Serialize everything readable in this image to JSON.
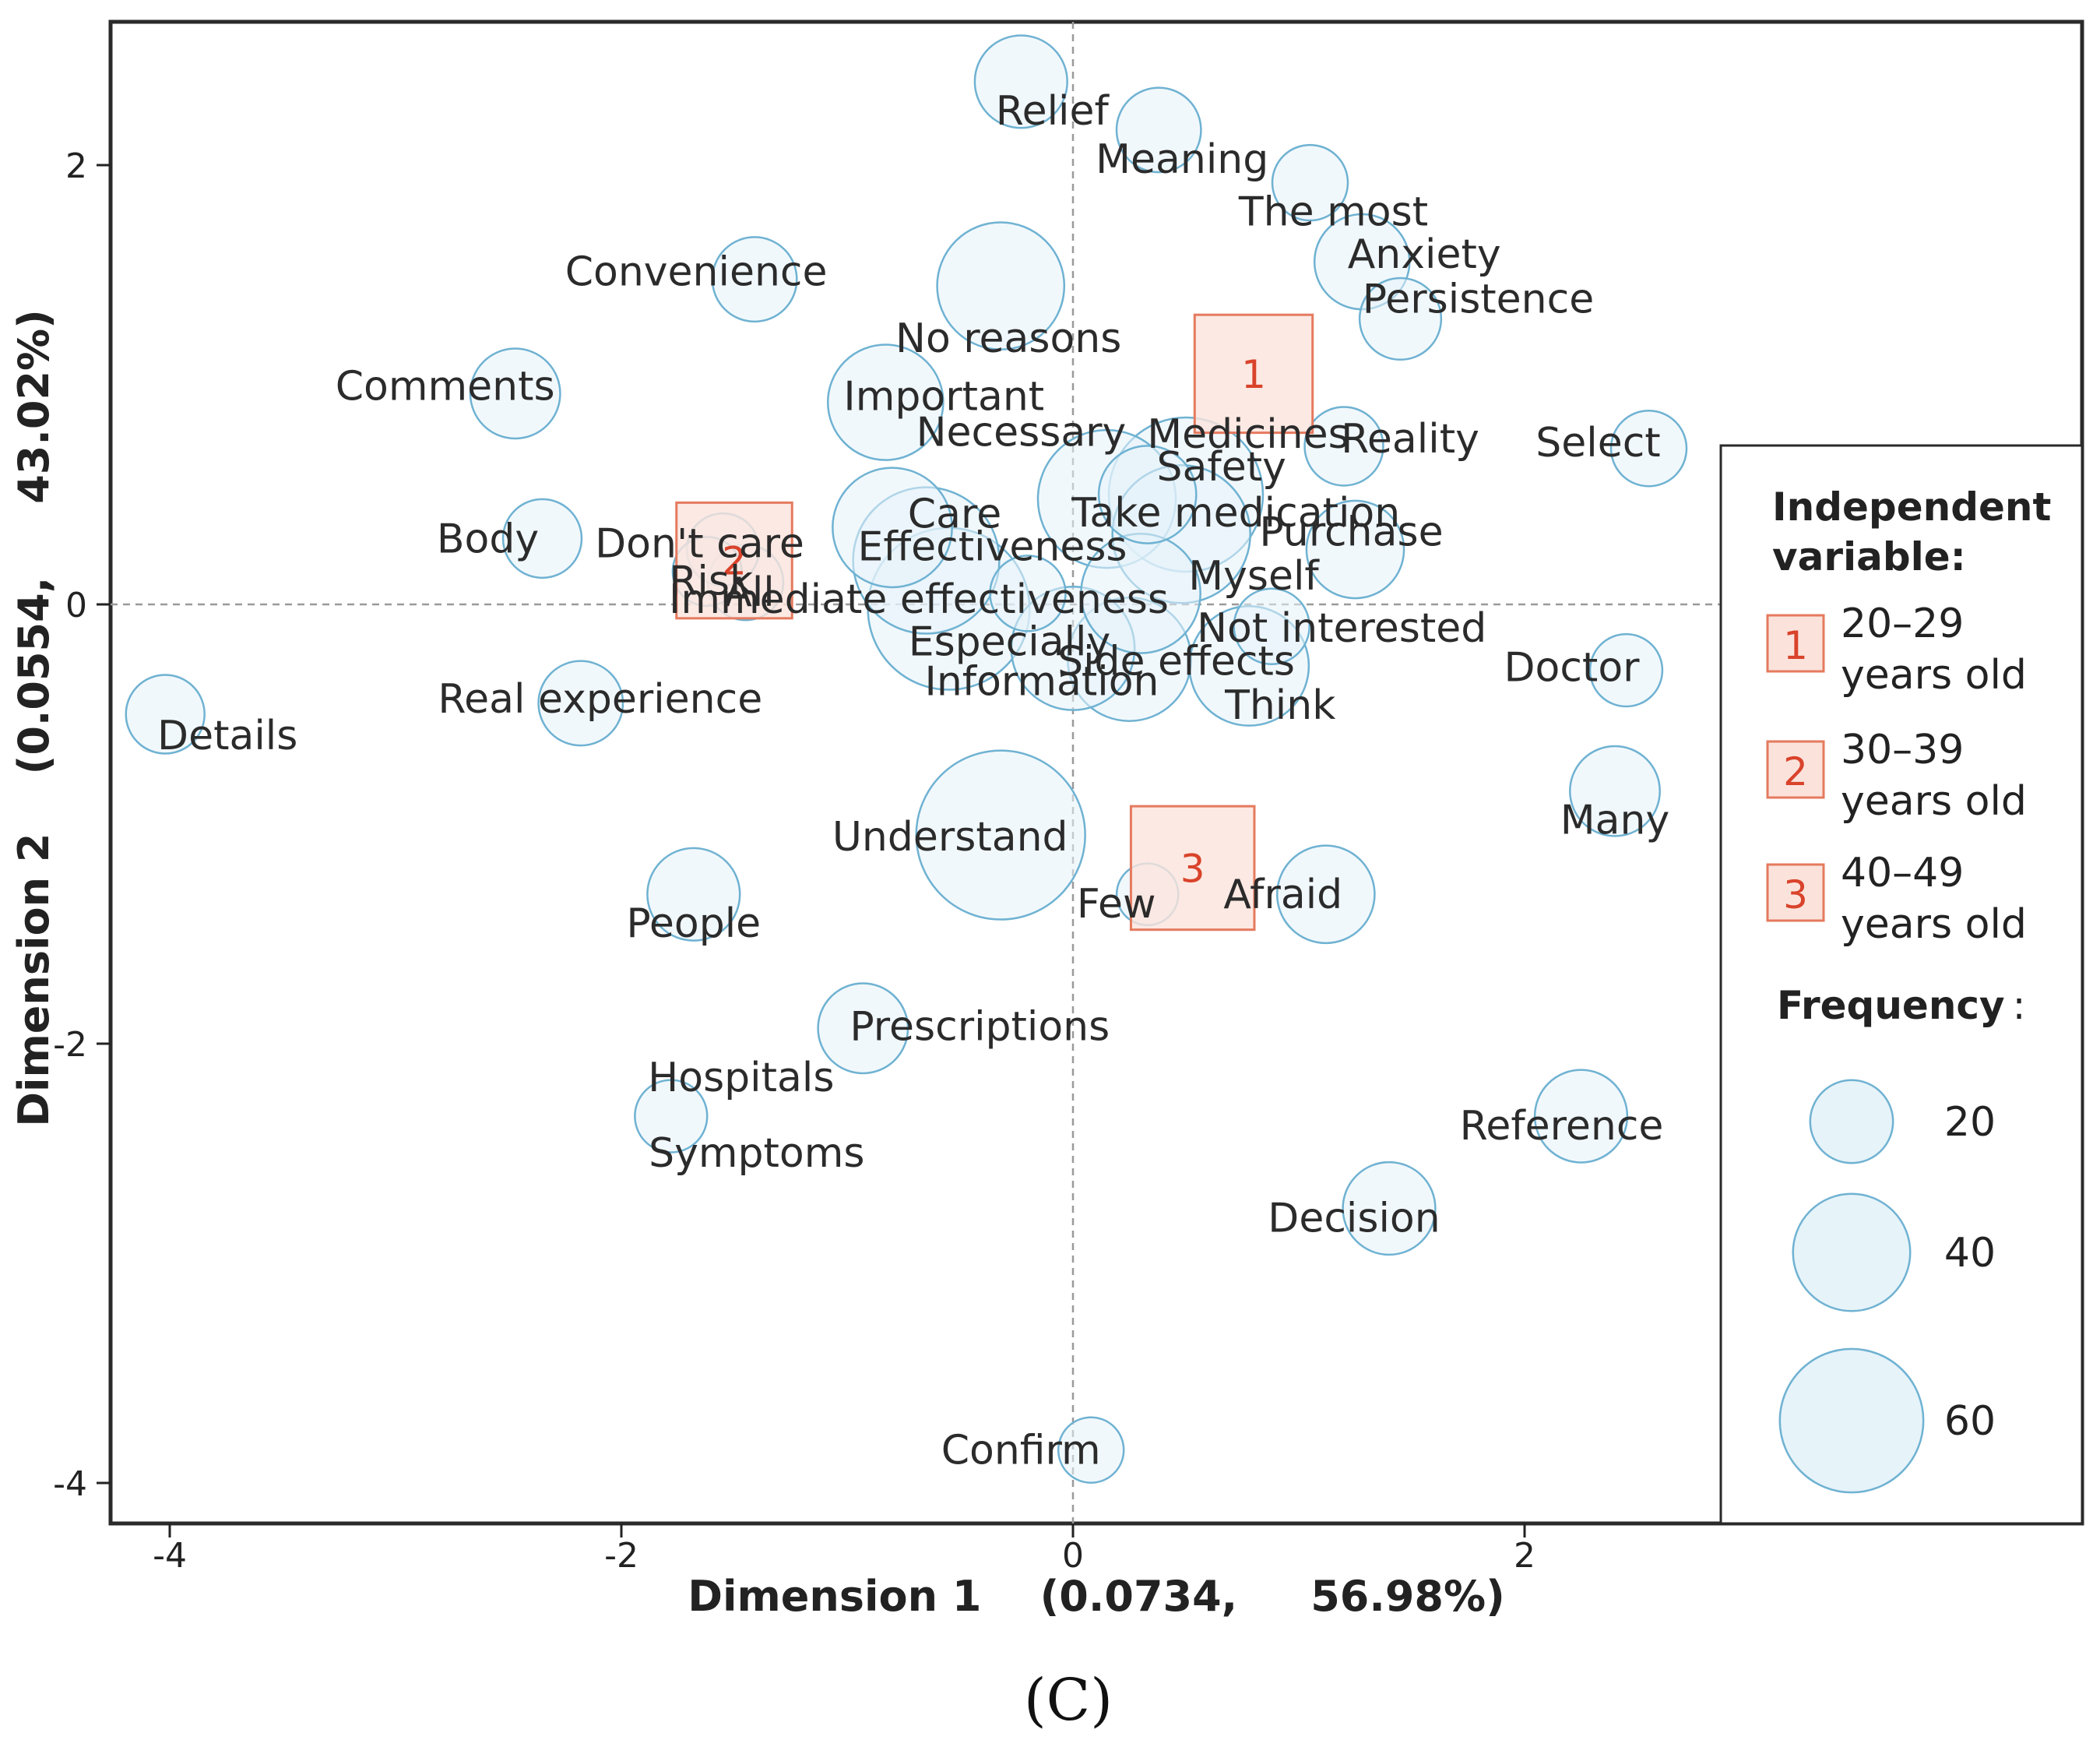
{
  "chart_data": {
    "type": "scatter",
    "subtype": "correspondence-analysis-bubble",
    "xlabel": "Dimension 1    (0.0734,     56.98%)",
    "ylabel": "Dimension 2    (0.0554,     43.02%)",
    "xlim": [
      -4.3,
      4.5
    ],
    "ylim": [
      -4.2,
      2.65
    ],
    "xticks": [
      -4,
      -2,
      0,
      2
    ],
    "yticks": [
      2,
      0,
      -2,
      -4
    ],
    "reference_lines": {
      "x": 0,
      "y": 0
    },
    "caption": "(C)",
    "colors": {
      "bubble_fill": "#e6f3f9",
      "bubble_stroke": "#6fb2d2",
      "group_fill": "#fbe3dc",
      "group_stroke": "#e57a5e",
      "group_text": "#d9432b"
    },
    "words": [
      {
        "label": "Relief",
        "x": -0.23,
        "y": 2.38,
        "freq": 18
      },
      {
        "label": "Meaning",
        "x": 0.38,
        "y": 2.16,
        "freq": 15
      },
      {
        "label": "The most",
        "x": 1.05,
        "y": 1.92,
        "freq": 12
      },
      {
        "label": "Convenience",
        "x": -1.41,
        "y": 1.48,
        "freq": 15
      },
      {
        "label": "No reasons",
        "x": -0.32,
        "y": 1.45,
        "freq": 34
      },
      {
        "label": "Anxiety",
        "x": 1.28,
        "y": 1.56,
        "freq": 19
      },
      {
        "label": "Persistence",
        "x": 1.45,
        "y": 1.3,
        "freq": 14
      },
      {
        "label": "Comments",
        "x": -2.47,
        "y": 0.96,
        "freq": 17
      },
      {
        "label": "Important",
        "x": -0.83,
        "y": 0.92,
        "freq": 28
      },
      {
        "label": "Reality",
        "x": 1.2,
        "y": 0.72,
        "freq": 13
      },
      {
        "label": "Select",
        "x": 2.55,
        "y": 0.71,
        "freq": 12
      },
      {
        "label": "Necessary",
        "x": 0.15,
        "y": 0.48,
        "freq": 40
      },
      {
        "label": "Medicines",
        "x": 0.5,
        "y": 0.5,
        "freq": 50
      },
      {
        "label": "Safety",
        "x": 0.33,
        "y": 0.5,
        "freq": 20
      },
      {
        "label": "Take medication",
        "x": 0.48,
        "y": 0.32,
        "freq": 40
      },
      {
        "label": "Care",
        "x": -0.8,
        "y": 0.35,
        "freq": 30
      },
      {
        "label": "Body",
        "x": -2.35,
        "y": 0.3,
        "freq": 13
      },
      {
        "label": "Don't care",
        "x": -1.55,
        "y": 0.25,
        "freq": 11
      },
      {
        "label": "Effectiveness",
        "x": -0.65,
        "y": 0.2,
        "freq": 45
      },
      {
        "label": "Purchase",
        "x": 1.25,
        "y": 0.25,
        "freq": 20
      },
      {
        "label": "Risk",
        "x": -1.62,
        "y": 0.15,
        "freq": 10
      },
      {
        "label": "All",
        "x": -1.45,
        "y": 0.1,
        "freq": 12
      },
      {
        "label": "Immediate effectiveness",
        "x": -0.2,
        "y": 0.05,
        "freq": 12
      },
      {
        "label": "Myself",
        "x": 0.3,
        "y": 0.05,
        "freq": 30
      },
      {
        "label": "Especially",
        "x": -0.55,
        "y": -0.02,
        "freq": 55
      },
      {
        "label": "Not interested",
        "x": 0.88,
        "y": -0.1,
        "freq": 12
      },
      {
        "label": "Side effects",
        "x": 0.25,
        "y": -0.25,
        "freq": 32
      },
      {
        "label": "Information",
        "x": 0.0,
        "y": -0.2,
        "freq": 32
      },
      {
        "label": "Think",
        "x": 0.78,
        "y": -0.28,
        "freq": 30
      },
      {
        "label": "Doctor",
        "x": 2.45,
        "y": -0.3,
        "freq": 11
      },
      {
        "label": "Real experience",
        "x": -2.18,
        "y": -0.45,
        "freq": 15
      },
      {
        "label": "Details",
        "x": -4.02,
        "y": -0.5,
        "freq": 13
      },
      {
        "label": "Many",
        "x": 2.4,
        "y": -0.85,
        "freq": 17
      },
      {
        "label": "Understand",
        "x": -0.32,
        "y": -1.05,
        "freq": 60
      },
      {
        "label": "Few",
        "x": 0.33,
        "y": -1.32,
        "freq": 8
      },
      {
        "label": "Afraid",
        "x": 1.12,
        "y": -1.32,
        "freq": 20
      },
      {
        "label": "People",
        "x": -1.68,
        "y": -1.32,
        "freq": 18
      },
      {
        "label": "Prescriptions",
        "x": -0.93,
        "y": -1.93,
        "freq": 17
      },
      {
        "label": "Hospitals",
        "x": -1.78,
        "y": -2.33,
        "freq": 11
      },
      {
        "label": "Symptoms",
        "x": -1.78,
        "y": -2.33,
        "freq": 0
      },
      {
        "label": "Reference",
        "x": 2.25,
        "y": -2.33,
        "freq": 18
      },
      {
        "label": "Decision",
        "x": 1.4,
        "y": -2.75,
        "freq": 18
      },
      {
        "label": "Confirm",
        "x": 0.08,
        "y": -3.85,
        "freq": 9
      }
    ],
    "groups": [
      {
        "id": "1",
        "label": "20–29 years old",
        "x": 0.8,
        "y": 1.05,
        "freq": 52
      },
      {
        "id": "2",
        "label": "30–39 years old",
        "x": -1.5,
        "y": 0.2,
        "freq": 50
      },
      {
        "id": "3",
        "label": "40–49 years old",
        "x": 0.53,
        "y": -1.2,
        "freq": 57
      }
    ],
    "legend": {
      "position": "right",
      "title_line1": "Independent",
      "title_line2": "variable:",
      "frequency_title": "Frequency",
      "frequency_colon": ":",
      "sizes": [
        20,
        40,
        60
      ],
      "group_labels": [
        {
          "id": "1",
          "line1": "20–29",
          "line2": "years old"
        },
        {
          "id": "2",
          "line1": "30–39",
          "line2": "years old"
        },
        {
          "id": "3",
          "line1": "40–49",
          "line2": "years old"
        }
      ]
    }
  }
}
